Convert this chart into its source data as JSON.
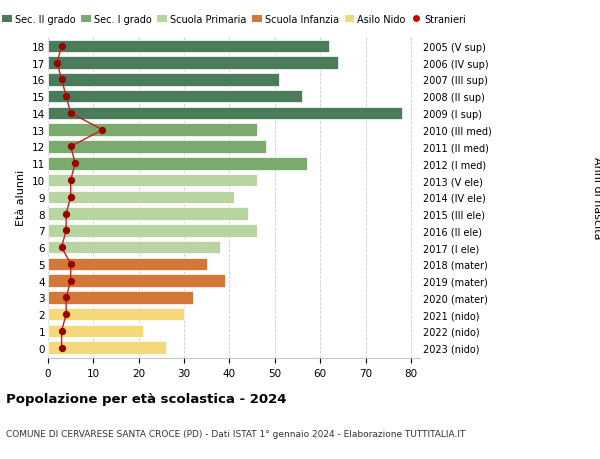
{
  "ages": [
    18,
    17,
    16,
    15,
    14,
    13,
    12,
    11,
    10,
    9,
    8,
    7,
    6,
    5,
    4,
    3,
    2,
    1,
    0
  ],
  "right_labels": [
    "2005 (V sup)",
    "2006 (IV sup)",
    "2007 (III sup)",
    "2008 (II sup)",
    "2009 (I sup)",
    "2010 (III med)",
    "2011 (II med)",
    "2012 (I med)",
    "2013 (V ele)",
    "2014 (IV ele)",
    "2015 (III ele)",
    "2016 (II ele)",
    "2017 (I ele)",
    "2018 (mater)",
    "2019 (mater)",
    "2020 (mater)",
    "2021 (nido)",
    "2022 (nido)",
    "2023 (nido)"
  ],
  "bar_values": [
    62,
    64,
    51,
    56,
    78,
    46,
    48,
    57,
    46,
    41,
    44,
    46,
    38,
    35,
    39,
    32,
    30,
    21,
    26
  ],
  "stranieri": [
    3,
    2,
    3,
    4,
    5,
    12,
    5,
    6,
    5,
    5,
    4,
    4,
    3,
    5,
    5,
    4,
    4,
    3,
    3
  ],
  "bar_colors": [
    "#4a7c59",
    "#4a7c59",
    "#4a7c59",
    "#4a7c59",
    "#4a7c59",
    "#7aaa6e",
    "#7aaa6e",
    "#7aaa6e",
    "#b8d4a0",
    "#b8d4a0",
    "#b8d4a0",
    "#b8d4a0",
    "#b8d4a0",
    "#d4783a",
    "#d4783a",
    "#d4783a",
    "#f5d87a",
    "#f5d87a",
    "#f5d87a"
  ],
  "legend_labels": [
    "Sec. II grado",
    "Sec. I grado",
    "Scuola Primaria",
    "Scuola Infanzia",
    "Asilo Nido",
    "Stranieri"
  ],
  "legend_colors": [
    "#4a7c59",
    "#7aaa6e",
    "#b8d4a0",
    "#d4783a",
    "#f5d87a",
    "#cc0000"
  ],
  "title": "Popolazione per età scolastica - 2024",
  "subtitle": "COMUNE DI CERVARESE SANTA CROCE (PD) - Dati ISTAT 1° gennaio 2024 - Elaborazione TUTTITALIA.IT",
  "ylabel_left": "Età alunni",
  "ylabel_right": "Anni di nascita",
  "xlim": [
    0,
    82
  ],
  "xticks": [
    0,
    10,
    20,
    30,
    40,
    50,
    60,
    70,
    80
  ],
  "bg_color": "#ffffff",
  "grid_color": "#cccccc",
  "stranieri_color": "#990000",
  "stranieri_line_color": "#bb2222"
}
